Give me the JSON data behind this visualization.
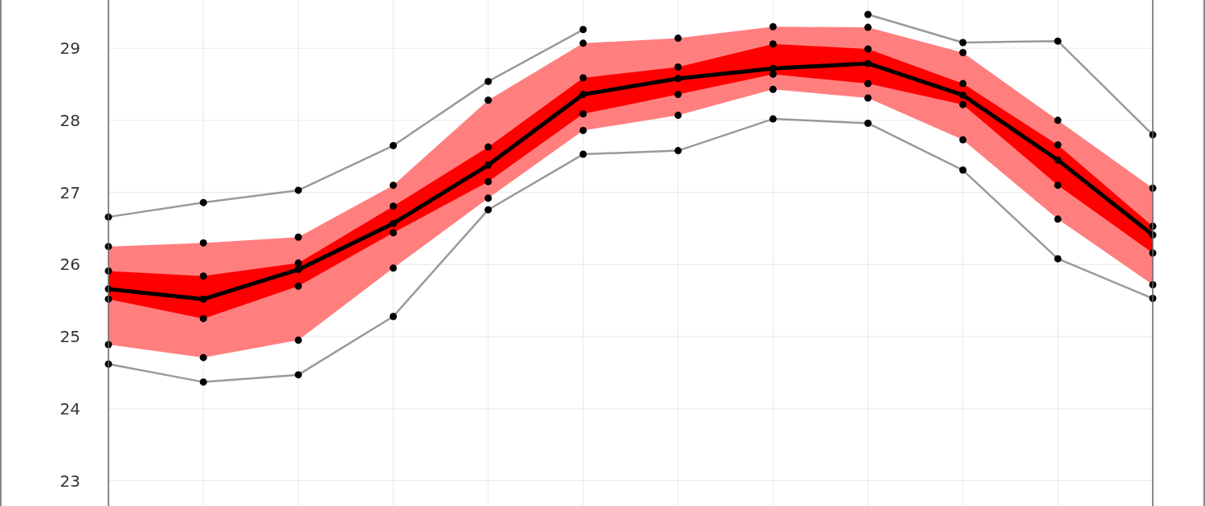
{
  "chart_data": {
    "type": "line",
    "categories": [
      null,
      null,
      null,
      null,
      null,
      null,
      null,
      null,
      null,
      null,
      null,
      null
    ],
    "ylim": [
      22.65,
      29.67
    ],
    "yticks": [
      23,
      24,
      25,
      26,
      27,
      28,
      29
    ],
    "grid": true,
    "marker": "circle",
    "series": [
      {
        "type": "area",
        "color": "#ff7f7f",
        "values": [
          null,
          null,
          null,
          null,
          null,
          null,
          null,
          null,
          null,
          null,
          null,
          null
        ],
        "lower": [
          24.89,
          24.71,
          24.95,
          25.95,
          26.92,
          27.86,
          28.07,
          28.43,
          28.31,
          27.73,
          26.63,
          25.72
        ],
        "upper": [
          26.25,
          26.3,
          26.38,
          27.1,
          28.28,
          29.07,
          29.14,
          29.3,
          29.29,
          28.94,
          28.0,
          27.06
        ]
      },
      {
        "type": "area",
        "color": "#ff0000",
        "values": [
          null,
          null,
          null,
          null,
          null,
          null,
          null,
          null,
          null,
          null,
          null,
          null
        ],
        "lower": [
          25.52,
          25.25,
          25.7,
          26.44,
          27.15,
          28.09,
          28.36,
          28.64,
          28.51,
          28.22,
          27.1,
          26.16
        ],
        "upper": [
          25.91,
          25.84,
          26.02,
          26.81,
          27.63,
          28.59,
          28.74,
          29.06,
          28.99,
          28.51,
          27.66,
          26.53
        ]
      },
      {
        "type": "line",
        "color": "#999999",
        "values": [
          26.66,
          26.86,
          27.03,
          27.65,
          28.54,
          29.26,
          null,
          null,
          29.47,
          29.08,
          29.1,
          27.8
        ]
      },
      {
        "type": "line",
        "color": "#999999",
        "values": [
          24.62,
          24.37,
          24.47,
          25.28,
          26.76,
          27.53,
          27.58,
          28.02,
          27.96,
          27.31,
          26.08,
          25.53
        ]
      },
      {
        "type": "scatter",
        "color": "#000000",
        "values": [
          24.89,
          24.71,
          24.95,
          25.95,
          26.92,
          27.86,
          28.07,
          28.43,
          28.31,
          27.73,
          26.63,
          25.72
        ]
      },
      {
        "type": "scatter",
        "color": "#000000",
        "values": [
          26.25,
          26.3,
          26.38,
          27.1,
          28.28,
          29.07,
          29.14,
          29.3,
          29.29,
          28.94,
          28.0,
          27.06
        ]
      },
      {
        "type": "scatter",
        "color": "#000000",
        "values": [
          25.52,
          25.25,
          25.7,
          26.44,
          27.15,
          28.09,
          28.36,
          28.64,
          28.51,
          28.22,
          27.1,
          26.16
        ]
      },
      {
        "type": "scatter",
        "color": "#000000",
        "values": [
          25.91,
          25.84,
          26.02,
          26.81,
          27.63,
          28.59,
          28.74,
          29.06,
          28.99,
          28.51,
          27.66,
          26.53
        ]
      },
      {
        "type": "line",
        "color": "#000000",
        "values": [
          25.66,
          25.52,
          25.93,
          26.57,
          27.38,
          28.36,
          28.58,
          28.72,
          28.79,
          28.35,
          27.45,
          26.41
        ]
      }
    ]
  }
}
